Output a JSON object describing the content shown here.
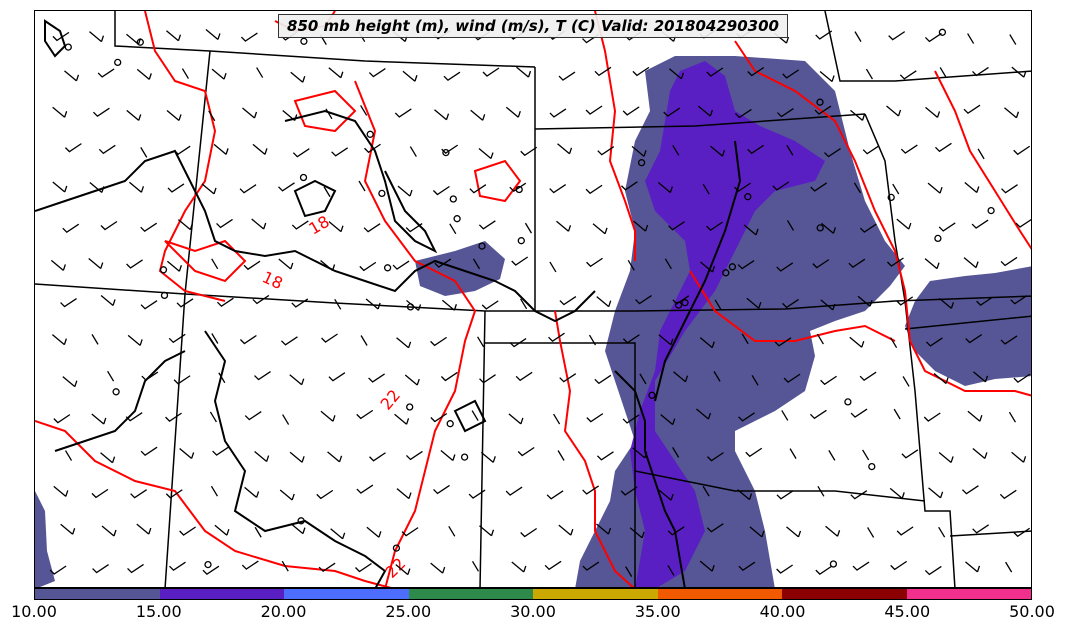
{
  "map": {
    "title": "850 mb height (m), wind (m/s), T (C) Valid: 201804290300",
    "temperature_contour_labels": [
      "18",
      "18",
      "22",
      "22"
    ],
    "colors": {
      "temperature_contour": "#ff0000",
      "height_contour": "#000000",
      "boundaries": "#000000",
      "wind_barbs": "#000000"
    },
    "wind_fill_classes": [
      "10-15",
      "15-20"
    ]
  },
  "colorbar": {
    "labels": [
      "10.00",
      "15.00",
      "20.00",
      "25.00",
      "30.00",
      "35.00",
      "40.00",
      "45.00",
      "50.00"
    ],
    "colors": [
      "#565696",
      "#5a1fc2",
      "#4d6dff",
      "#2d8a4a",
      "#cca900",
      "#f25a00",
      "#8b0000",
      "#f0308c"
    ]
  }
}
